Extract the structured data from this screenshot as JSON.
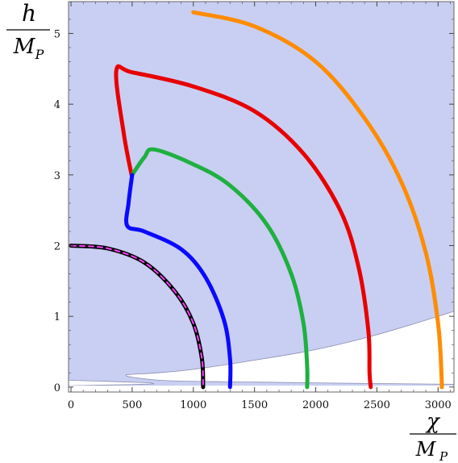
{
  "chart_data": {
    "type": "line",
    "title": "",
    "xlabel": {
      "numerator": "χ",
      "denominator_main": "M",
      "denominator_sub": "P"
    },
    "ylabel": {
      "numerator": "h",
      "denominator_main": "M",
      "denominator_sub": "P"
    },
    "xlim": [
      -20,
      3130
    ],
    "ylim": [
      -0.07,
      5.45
    ],
    "xticks": [
      0,
      500,
      1000,
      1500,
      2000,
      2500,
      3000
    ],
    "yticks": [
      0,
      1,
      2,
      3,
      4,
      5
    ],
    "grid": false,
    "legend": "none",
    "colors": {
      "allowed_region": "#c9cff2",
      "region_boundary": "#8a8fb0",
      "frame": "#666666"
    },
    "region": {
      "description_color": "shaded region with white excluded wedge",
      "excluded_upper_boundary": [
        [
          3130,
          1.07
        ],
        [
          2500,
          0.74
        ],
        [
          2000,
          0.53
        ],
        [
          1500,
          0.38
        ],
        [
          1000,
          0.25
        ],
        [
          700,
          0.2
        ],
        [
          500,
          0.18
        ],
        [
          450,
          0.17
        ],
        [
          500,
          0.14
        ],
        [
          800,
          0.09
        ],
        [
          1500,
          0.07
        ],
        [
          2500,
          0.05
        ],
        [
          3130,
          0.04
        ]
      ],
      "excluded_lower_sliver": [
        [
          -20,
          0.1
        ],
        [
          0,
          0.095
        ],
        [
          300,
          0.08
        ],
        [
          650,
          0.06
        ],
        [
          680,
          0.045
        ],
        [
          500,
          0.035
        ],
        [
          0,
          0.02
        ],
        [
          -20,
          0.02
        ]
      ]
    },
    "series": [
      {
        "color": "#ff8c00",
        "width": 5,
        "dashed": false,
        "points": [
          [
            1000,
            5.3
          ],
          [
            1500,
            5.1
          ],
          [
            2000,
            4.6
          ],
          [
            2400,
            3.8
          ],
          [
            2700,
            2.9
          ],
          [
            2900,
            1.9
          ],
          [
            3000,
            0.9
          ],
          [
            3030,
            0.1
          ],
          [
            3030,
            0.0
          ]
        ]
      },
      {
        "color": "#e80000",
        "width": 5,
        "dashed": false,
        "points": [
          [
            495,
            3.0
          ],
          [
            430,
            3.6
          ],
          [
            370,
            4.47
          ],
          [
            500,
            4.45
          ],
          [
            1000,
            4.25
          ],
          [
            1500,
            3.9
          ],
          [
            1900,
            3.3
          ],
          [
            2200,
            2.5
          ],
          [
            2350,
            1.7
          ],
          [
            2430,
            0.8
          ],
          [
            2440,
            0.2
          ],
          [
            2450,
            0.0
          ]
        ]
      },
      {
        "color": "#1fb040",
        "width": 5,
        "dashed": false,
        "points": [
          [
            500,
            3.0
          ],
          [
            600,
            3.25
          ],
          [
            680,
            3.36
          ],
          [
            1000,
            3.15
          ],
          [
            1300,
            2.85
          ],
          [
            1600,
            2.3
          ],
          [
            1800,
            1.6
          ],
          [
            1900,
            0.9
          ],
          [
            1930,
            0.3
          ],
          [
            1930,
            0.0
          ]
        ]
      },
      {
        "color": "#0a0aff",
        "width": 5,
        "dashed": false,
        "points": [
          [
            500,
            3.0
          ],
          [
            470,
            2.6
          ],
          [
            460,
            2.28
          ],
          [
            600,
            2.2
          ],
          [
            900,
            1.95
          ],
          [
            1100,
            1.55
          ],
          [
            1250,
            0.95
          ],
          [
            1300,
            0.4
          ],
          [
            1300,
            0.0
          ]
        ]
      },
      {
        "color": "#000000",
        "width": 5,
        "dashed": false,
        "points": [
          [
            0,
            2.0
          ],
          [
            300,
            1.96
          ],
          [
            600,
            1.76
          ],
          [
            850,
            1.35
          ],
          [
            1000,
            0.9
          ],
          [
            1070,
            0.4
          ],
          [
            1080,
            0.0
          ]
        ]
      },
      {
        "color": "#ff40ff",
        "width": 2,
        "dashed": true,
        "points": [
          [
            0,
            2.0
          ],
          [
            300,
            1.96
          ],
          [
            600,
            1.76
          ],
          [
            850,
            1.35
          ],
          [
            1000,
            0.9
          ],
          [
            1070,
            0.4
          ],
          [
            1080,
            0.0
          ]
        ]
      }
    ]
  }
}
